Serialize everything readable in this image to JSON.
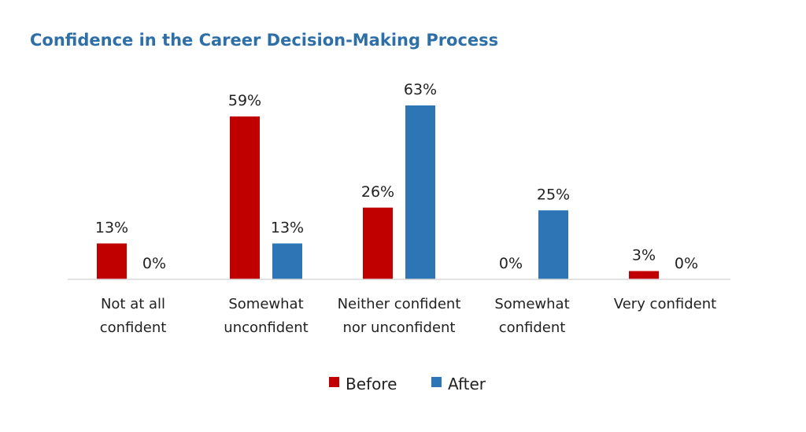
{
  "chart_data": {
    "type": "bar",
    "title": "Confidence in the Career Decision-Making Process",
    "categories": [
      [
        "Not at all",
        "confident"
      ],
      [
        "Somewhat",
        "unconfident"
      ],
      [
        "Neither confident",
        "nor unconfident"
      ],
      [
        "Somewhat",
        "confident"
      ],
      [
        "Very confident"
      ]
    ],
    "series": [
      {
        "name": "Before",
        "color": "#c00000",
        "values": [
          13,
          59,
          26,
          0,
          3
        ],
        "labels": [
          "13%",
          "59%",
          "26%",
          "0%",
          "3%"
        ]
      },
      {
        "name": "After",
        "color": "#2e75b6",
        "values": [
          0,
          13,
          63,
          25,
          0
        ],
        "labels": [
          "0%",
          "13%",
          "63%",
          "25%",
          "0%"
        ]
      }
    ],
    "ylim": [
      0,
      63
    ],
    "grid": false,
    "legend": "bottom"
  }
}
